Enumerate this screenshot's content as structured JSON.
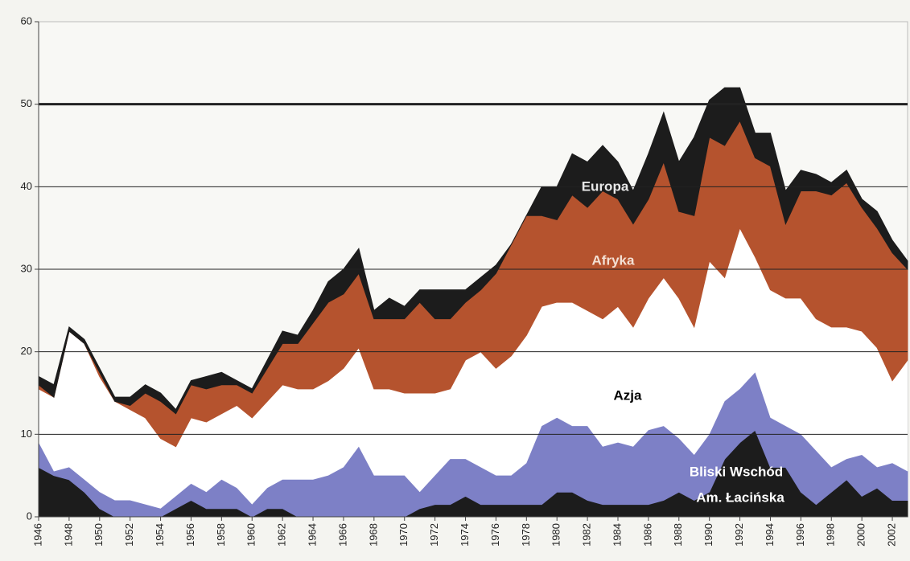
{
  "chart_data": {
    "type": "stacked_area",
    "x": [
      1946,
      1947,
      1948,
      1949,
      1950,
      1951,
      1952,
      1953,
      1954,
      1955,
      1956,
      1957,
      1958,
      1959,
      1960,
      1961,
      1962,
      1963,
      1964,
      1965,
      1966,
      1967,
      1968,
      1969,
      1970,
      1971,
      1972,
      1973,
      1974,
      1975,
      1976,
      1977,
      1978,
      1979,
      1980,
      1981,
      1982,
      1983,
      1984,
      1985,
      1986,
      1987,
      1988,
      1989,
      1990,
      1991,
      1992,
      1993,
      1994,
      1995,
      1996,
      1997,
      1998,
      1999,
      2000,
      2001,
      2002,
      2003
    ],
    "xlim": [
      1946,
      2003
    ],
    "xticks": [
      1946,
      1948,
      1950,
      1952,
      1954,
      1956,
      1958,
      1960,
      1962,
      1964,
      1966,
      1968,
      1970,
      1972,
      1974,
      1976,
      1978,
      1980,
      1982,
      1984,
      1986,
      1988,
      1990,
      1992,
      1994,
      1996,
      1998,
      2000,
      2002
    ],
    "ylim": [
      0,
      60
    ],
    "yticks": [
      0,
      10,
      20,
      30,
      40,
      50,
      60
    ],
    "grid": true,
    "series": [
      {
        "name": "Am. Łacińska",
        "color": "#1c1c1c",
        "values": [
          6,
          5,
          4.5,
          3,
          1,
          0,
          0,
          0,
          0,
          1,
          2,
          1,
          1,
          1,
          0,
          1,
          1,
          0,
          0,
          0,
          0,
          0,
          0,
          0,
          0,
          1,
          1.5,
          1.5,
          2.5,
          1.5,
          1.5,
          1.5,
          1.5,
          1.5,
          3,
          3,
          2,
          1.5,
          1.5,
          1.5,
          1.5,
          2,
          3,
          2,
          3,
          7,
          9,
          10.5,
          6,
          6,
          3,
          1.5,
          3,
          4.5,
          2.5,
          3.5,
          2,
          2
        ]
      },
      {
        "name": "Bliski Wschód",
        "color": "#7d80c6",
        "values": [
          3,
          0.5,
          1.5,
          1.5,
          2,
          2,
          2,
          1.5,
          1,
          1.5,
          2,
          2,
          3.5,
          2.5,
          1.5,
          2.5,
          3.5,
          4.5,
          4.5,
          5,
          6,
          8.5,
          5,
          5,
          5,
          2,
          3.5,
          5.5,
          4.5,
          4.5,
          3.5,
          3.5,
          5,
          9.5,
          9,
          8,
          9,
          7,
          7.5,
          7,
          9,
          9,
          6.5,
          5.5,
          7,
          7,
          6.5,
          7,
          6,
          5,
          7,
          6.5,
          3,
          2.5,
          5,
          2.5,
          4.5,
          3.5
        ]
      },
      {
        "name": "Azja",
        "color": "#ffffff",
        "values": [
          6.5,
          9,
          16.5,
          16.5,
          14,
          12,
          11,
          10.5,
          8.5,
          6,
          8,
          8.5,
          8,
          10,
          10.5,
          10.5,
          11.5,
          11,
          11,
          11.5,
          12,
          12,
          10.5,
          10.5,
          10,
          12,
          10,
          8.5,
          12,
          14,
          13,
          14.5,
          15.5,
          14.5,
          14,
          15,
          14,
          15.5,
          16.5,
          14.5,
          16,
          18,
          17,
          15.5,
          21,
          15,
          19.5,
          14,
          15.5,
          15.5,
          16.5,
          16,
          17,
          16,
          15,
          14.5,
          10,
          13.5
        ]
      },
      {
        "name": "Afryka",
        "color": "#b5532e",
        "values": [
          0.5,
          0,
          0,
          0,
          0.5,
          0,
          0.5,
          3,
          4.5,
          4,
          4,
          4,
          3.5,
          2.5,
          3,
          4,
          5,
          5.5,
          8,
          9.5,
          9,
          9,
          8.5,
          8.5,
          9,
          11,
          9,
          8.5,
          7,
          7.5,
          11.5,
          13.5,
          14.5,
          11,
          10,
          13,
          12.5,
          15.5,
          13,
          12.5,
          12,
          14,
          10.5,
          13.5,
          15,
          16,
          13,
          12,
          15,
          9,
          13,
          15.5,
          16,
          17.5,
          15,
          14.5,
          15.5,
          11
        ]
      },
      {
        "name": "Europa",
        "color": "#1c1c1c",
        "values": [
          1,
          1.5,
          0.5,
          0.5,
          0.5,
          0.5,
          1,
          1,
          1,
          0.5,
          0.5,
          1.5,
          1.5,
          0.5,
          0.5,
          1,
          1.5,
          1,
          1.5,
          2.5,
          3,
          3,
          1,
          2.5,
          1.5,
          1.5,
          3.5,
          3.5,
          1.5,
          1.5,
          1,
          0,
          0,
          3.5,
          4,
          5,
          5.5,
          5.5,
          4.5,
          4,
          5.5,
          6,
          6,
          9.5,
          4.5,
          7,
          4,
          3,
          4,
          4,
          2.5,
          2,
          1.5,
          1.5,
          1,
          2,
          1.5,
          1
        ]
      }
    ]
  }
}
